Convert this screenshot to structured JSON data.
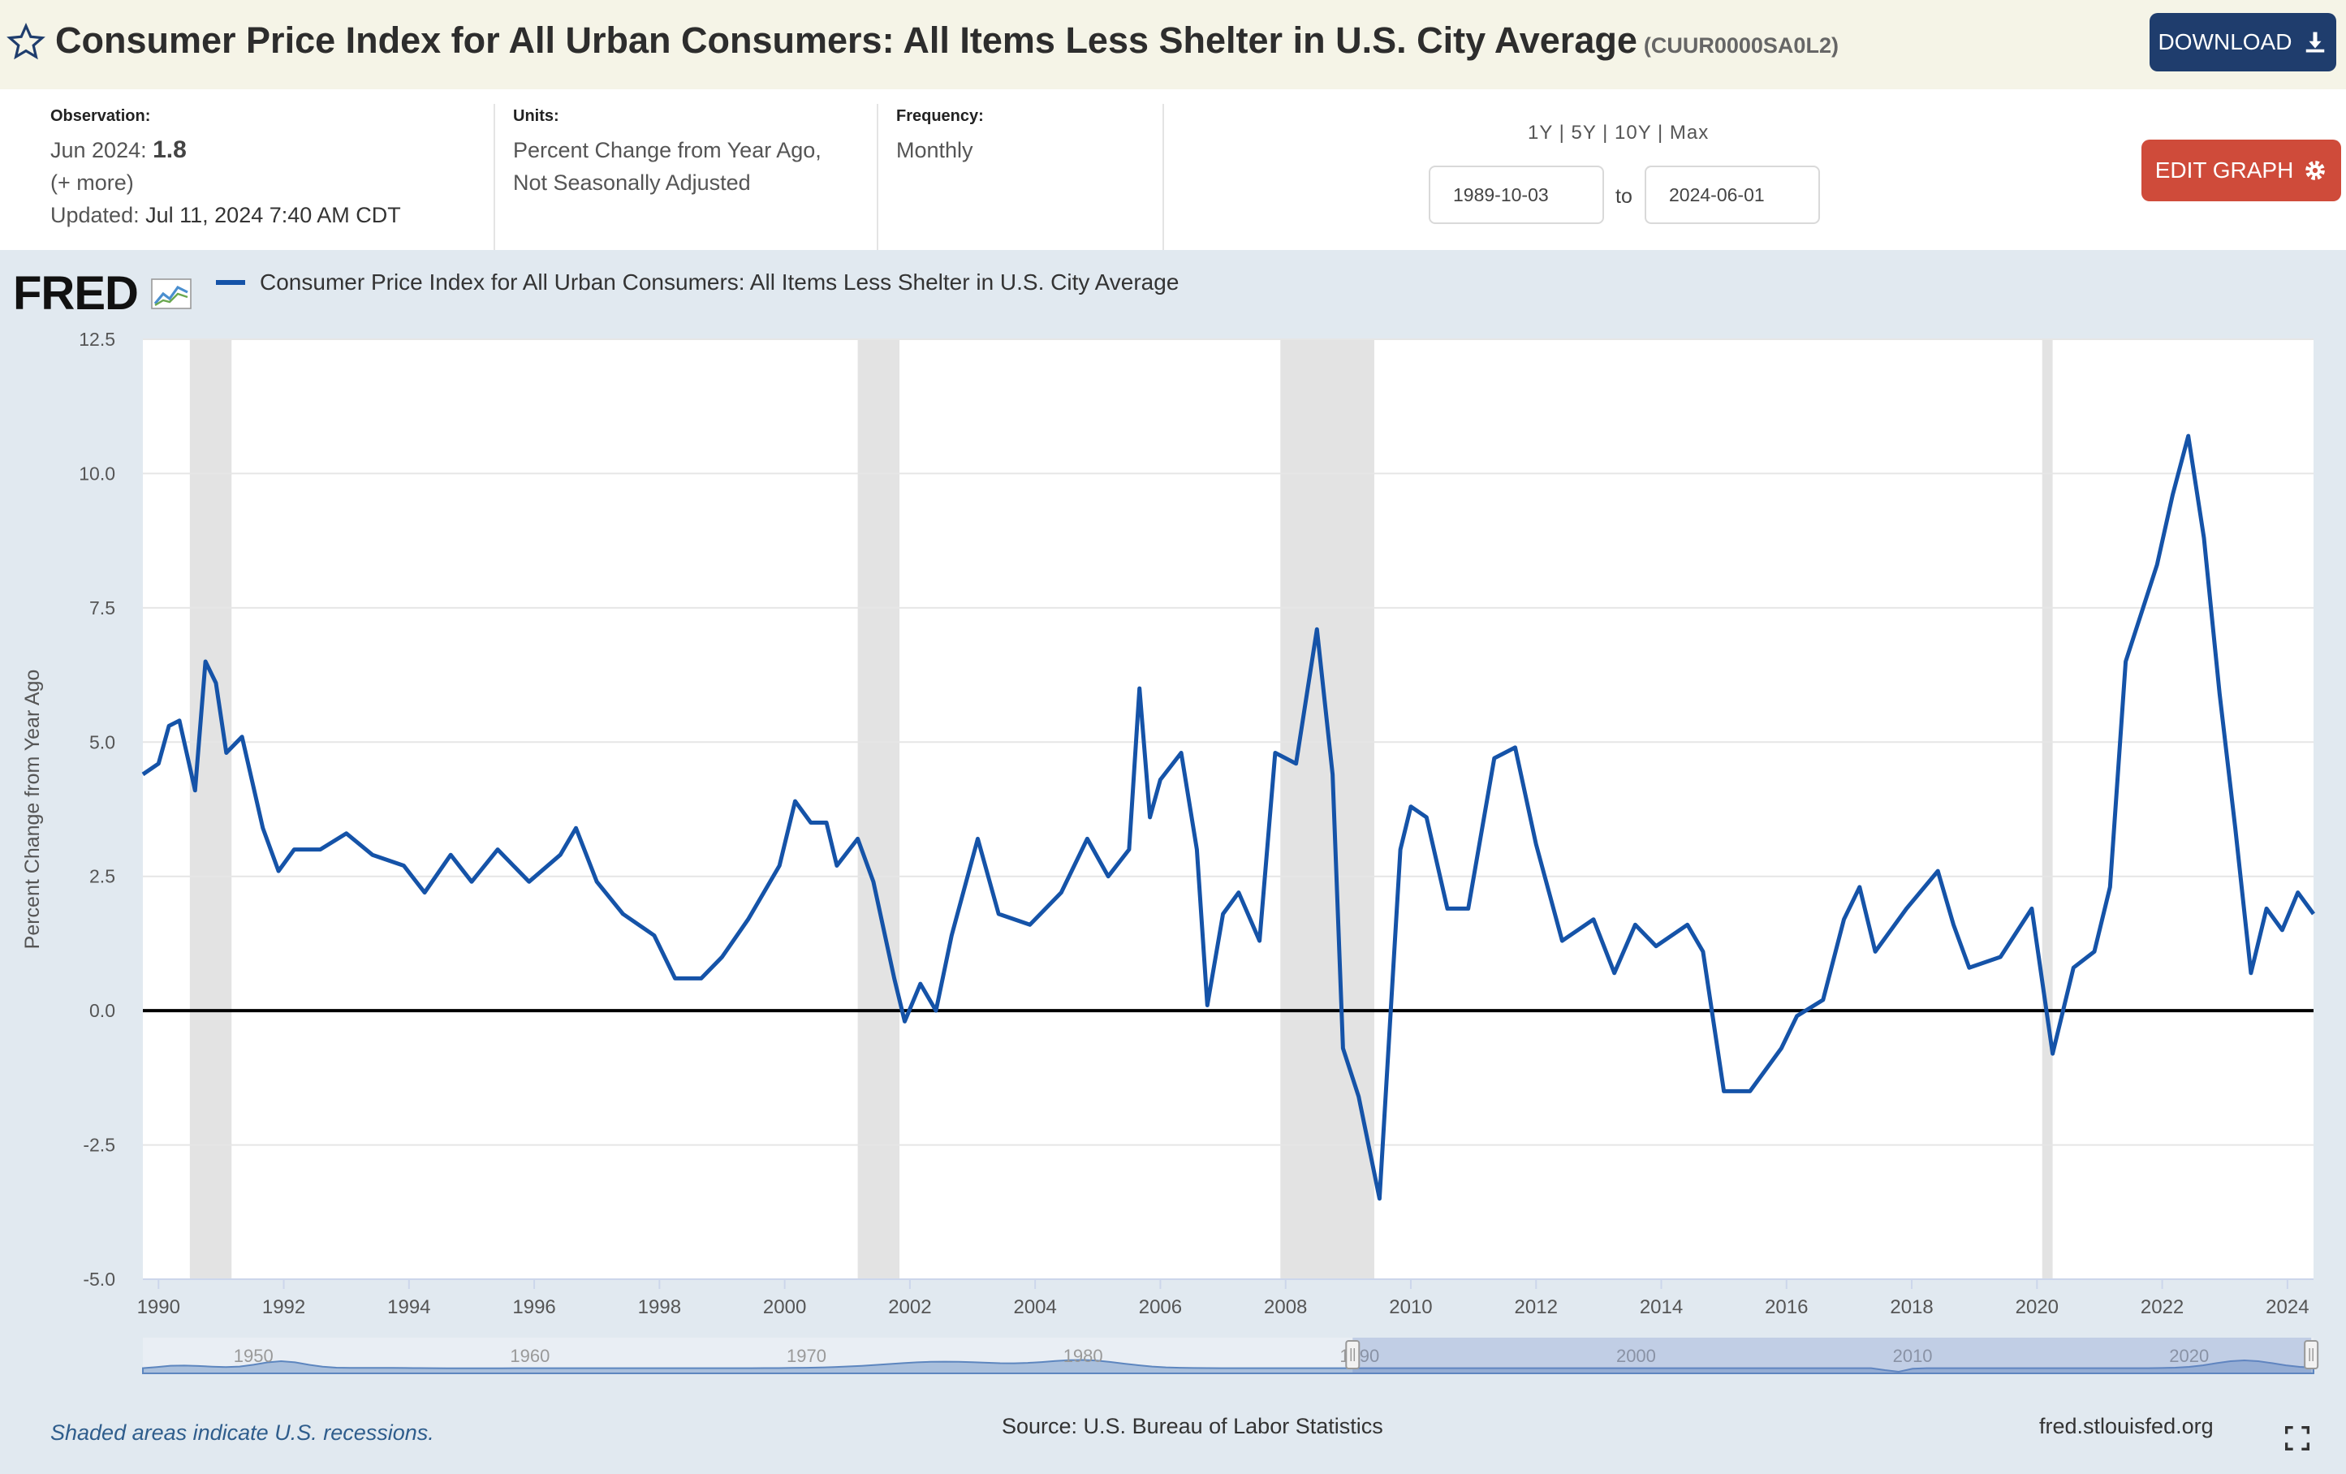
{
  "header": {
    "title": "Consumer Price Index for All Urban Consumers: All Items Less Shelter in U.S. City Average",
    "series_code": "(CUUR0000SA0L2)",
    "download_label": "DOWNLOAD"
  },
  "meta": {
    "observation_label": "Observation:",
    "observation_date": "Jun 2024:",
    "observation_value": "1.8",
    "more": "(+ more)",
    "updated_label": "Updated:",
    "updated_value": "Jul 11, 2024 7:40 AM CDT",
    "units_label": "Units:",
    "units_line1": "Percent Change from Year Ago,",
    "units_line2": "Not Seasonally Adjusted",
    "frequency_label": "Frequency:",
    "frequency_value": "Monthly"
  },
  "controls": {
    "range_1y": "1Y",
    "range_5y": "5Y",
    "range_10y": "10Y",
    "range_max": "Max",
    "sep": "|",
    "start_date": "1989-10-03",
    "to": "to",
    "end_date": "2024-06-01",
    "edit_label": "EDIT GRAPH"
  },
  "chart_data": {
    "type": "line",
    "title": "",
    "xlabel": "",
    "ylabel": "Percent Change from Year Ago",
    "ylim": [
      -5,
      12.5
    ],
    "xlim": [
      "1989-10",
      "2024-06"
    ],
    "yticks": [
      -5.0,
      -2.5,
      0.0,
      2.5,
      5.0,
      7.5,
      10.0,
      12.5
    ],
    "ytick_labels": [
      "-5.0",
      "-2.5",
      "0.0",
      "2.5",
      "5.0",
      "7.5",
      "10.0",
      "12.5"
    ],
    "xtick_labels": [
      "1990",
      "1992",
      "1994",
      "1996",
      "1998",
      "2000",
      "2002",
      "2004",
      "2006",
      "2008",
      "2010",
      "2012",
      "2014",
      "2016",
      "2018",
      "2020",
      "2022",
      "2024"
    ],
    "grid": true,
    "legend": "top-left",
    "series": [
      {
        "name": "Consumer Price Index for All Urban Consumers: All Items Less Shelter in U.S. City Average",
        "color": "#1553a8",
        "points": [
          [
            "1989-10",
            4.4
          ],
          [
            "1990-01",
            4.6
          ],
          [
            "1990-03",
            5.3
          ],
          [
            "1990-05",
            5.4
          ],
          [
            "1990-08",
            4.1
          ],
          [
            "1990-10",
            6.5
          ],
          [
            "1990-12",
            6.1
          ],
          [
            "1991-02",
            4.8
          ],
          [
            "1991-05",
            5.1
          ],
          [
            "1991-09",
            3.4
          ],
          [
            "1991-12",
            2.6
          ],
          [
            "1992-03",
            3.0
          ],
          [
            "1992-08",
            3.0
          ],
          [
            "1993-01",
            3.3
          ],
          [
            "1993-06",
            2.9
          ],
          [
            "1993-12",
            2.7
          ],
          [
            "1994-04",
            2.2
          ],
          [
            "1994-09",
            2.9
          ],
          [
            "1995-01",
            2.4
          ],
          [
            "1995-06",
            3.0
          ],
          [
            "1995-12",
            2.4
          ],
          [
            "1996-06",
            2.9
          ],
          [
            "1996-09",
            3.4
          ],
          [
            "1997-01",
            2.4
          ],
          [
            "1997-06",
            1.8
          ],
          [
            "1997-12",
            1.4
          ],
          [
            "1998-04",
            0.6
          ],
          [
            "1998-09",
            0.6
          ],
          [
            "1999-01",
            1.0
          ],
          [
            "1999-06",
            1.7
          ],
          [
            "1999-12",
            2.7
          ],
          [
            "2000-03",
            3.9
          ],
          [
            "2000-06",
            3.5
          ],
          [
            "2000-09",
            3.5
          ],
          [
            "2000-11",
            2.7
          ],
          [
            "2001-03",
            3.2
          ],
          [
            "2001-06",
            2.4
          ],
          [
            "2001-10",
            0.6
          ],
          [
            "2001-12",
            -0.2
          ],
          [
            "2002-03",
            0.5
          ],
          [
            "2002-06",
            0.0
          ],
          [
            "2002-09",
            1.4
          ],
          [
            "2003-02",
            3.2
          ],
          [
            "2003-06",
            1.8
          ],
          [
            "2003-12",
            1.6
          ],
          [
            "2004-06",
            2.2
          ],
          [
            "2004-11",
            3.2
          ],
          [
            "2005-03",
            2.5
          ],
          [
            "2005-07",
            3.0
          ],
          [
            "2005-09",
            6.0
          ],
          [
            "2005-11",
            3.6
          ],
          [
            "2006-01",
            4.3
          ],
          [
            "2006-05",
            4.8
          ],
          [
            "2006-08",
            3.0
          ],
          [
            "2006-10",
            0.1
          ],
          [
            "2007-01",
            1.8
          ],
          [
            "2007-04",
            2.2
          ],
          [
            "2007-08",
            1.3
          ],
          [
            "2007-11",
            4.8
          ],
          [
            "2008-03",
            4.6
          ],
          [
            "2008-07",
            7.1
          ],
          [
            "2008-10",
            4.4
          ],
          [
            "2008-12",
            -0.7
          ],
          [
            "2009-03",
            -1.6
          ],
          [
            "2009-07",
            -3.5
          ],
          [
            "2009-11",
            3.0
          ],
          [
            "2010-01",
            3.8
          ],
          [
            "2010-04",
            3.6
          ],
          [
            "2010-08",
            1.9
          ],
          [
            "2010-12",
            1.9
          ],
          [
            "2011-05",
            4.7
          ],
          [
            "2011-09",
            4.9
          ],
          [
            "2012-01",
            3.1
          ],
          [
            "2012-06",
            1.3
          ],
          [
            "2012-12",
            1.7
          ],
          [
            "2013-04",
            0.7
          ],
          [
            "2013-08",
            1.6
          ],
          [
            "2013-12",
            1.2
          ],
          [
            "2014-06",
            1.6
          ],
          [
            "2014-09",
            1.1
          ],
          [
            "2015-01",
            -1.5
          ],
          [
            "2015-06",
            -1.5
          ],
          [
            "2015-12",
            -0.7
          ],
          [
            "2016-03",
            -0.1
          ],
          [
            "2016-08",
            0.2
          ],
          [
            "2016-12",
            1.7
          ],
          [
            "2017-03",
            2.3
          ],
          [
            "2017-06",
            1.1
          ],
          [
            "2017-12",
            1.9
          ],
          [
            "2018-06",
            2.6
          ],
          [
            "2018-09",
            1.6
          ],
          [
            "2018-12",
            0.8
          ],
          [
            "2019-06",
            1.0
          ],
          [
            "2019-12",
            1.9
          ],
          [
            "2020-04",
            -0.8
          ],
          [
            "2020-08",
            0.8
          ],
          [
            "2020-12",
            1.1
          ],
          [
            "2021-03",
            2.3
          ],
          [
            "2021-06",
            6.5
          ],
          [
            "2021-12",
            8.3
          ],
          [
            "2022-03",
            9.6
          ],
          [
            "2022-06",
            10.7
          ],
          [
            "2022-09",
            8.8
          ],
          [
            "2022-12",
            5.9
          ],
          [
            "2023-03",
            3.4
          ],
          [
            "2023-06",
            0.7
          ],
          [
            "2023-09",
            1.9
          ],
          [
            "2023-12",
            1.5
          ],
          [
            "2024-03",
            2.2
          ],
          [
            "2024-06",
            1.8
          ]
        ]
      }
    ],
    "recessions": [
      [
        "1990-07",
        "1991-03"
      ],
      [
        "2001-03",
        "2001-11"
      ],
      [
        "2007-12",
        "2009-06"
      ],
      [
        "2020-02",
        "2020-04"
      ]
    ]
  },
  "brand": {
    "fred_logo": "FRED",
    "legend_color": "#1553a8"
  },
  "navigator": {
    "labels": [
      "1950",
      "1960",
      "1970",
      "1980",
      "1990",
      "2000",
      "2010",
      "2020"
    ]
  },
  "footer": {
    "shaded_note": "Shaded areas indicate U.S. recessions.",
    "source": "Source: U.S. Bureau of Labor Statistics",
    "url": "fred.stlouisfed.org"
  }
}
